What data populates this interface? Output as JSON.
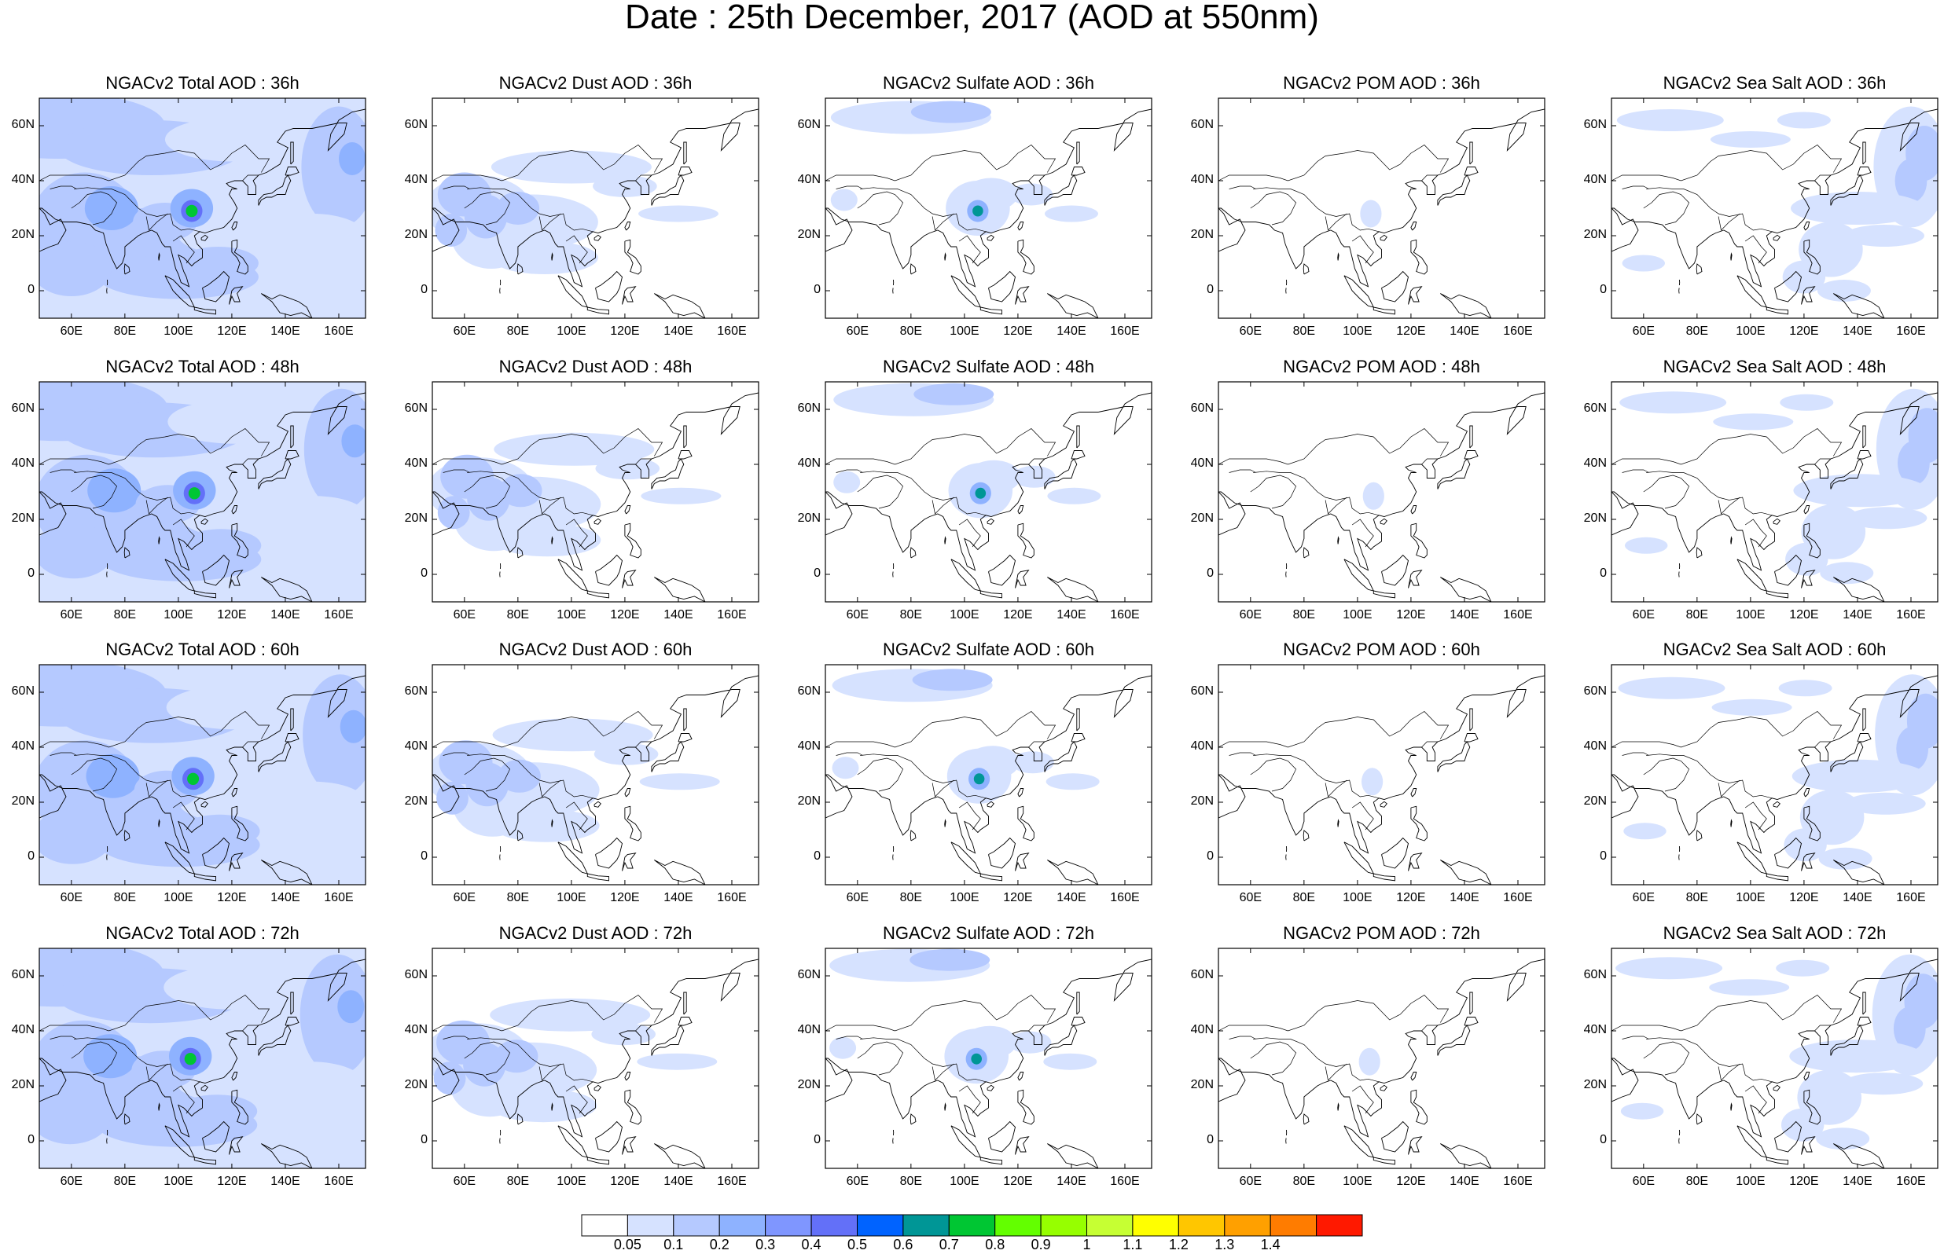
{
  "figure_title": "Date : 25th December, 2017 (AOD at 550nm)",
  "rows": [
    "36h",
    "48h",
    "60h",
    "72h"
  ],
  "columns": [
    "Total",
    "Dust",
    "Sulfate",
    "POM",
    "Sea Salt"
  ],
  "panel_titles": [
    [
      "NGACv2 Total AOD : 36h",
      "NGACv2 Dust AOD : 36h",
      "NGACv2 Sulfate AOD : 36h",
      "NGACv2 POM AOD : 36h",
      "NGACv2 Sea Salt AOD : 36h"
    ],
    [
      "NGACv2 Total AOD : 48h",
      "NGACv2 Dust AOD : 48h",
      "NGACv2 Sulfate AOD : 48h",
      "NGACv2 POM AOD : 48h",
      "NGACv2 Sea Salt AOD : 48h"
    ],
    [
      "NGACv2 Total AOD : 60h",
      "NGACv2 Dust AOD : 60h",
      "NGACv2 Sulfate AOD : 60h",
      "NGACv2 POM AOD : 60h",
      "NGACv2 Sea Salt AOD : 60h"
    ],
    [
      "NGACv2 Total AOD : 72h",
      "NGACv2 Dust AOD : 72h",
      "NGACv2 Sulfate AOD : 72h",
      "NGACv2 POM AOD : 72h",
      "NGACv2 Sea Salt  AOD : 72h"
    ]
  ],
  "map_extent": {
    "lon": [
      48,
      170
    ],
    "lat": [
      -10,
      70
    ]
  },
  "x_ticks": [
    "60E",
    "80E",
    "100E",
    "120E",
    "140E",
    "160E"
  ],
  "x_tick_values": [
    60,
    80,
    100,
    120,
    140,
    160
  ],
  "y_ticks": [
    "60N",
    "40N",
    "20N",
    "0"
  ],
  "y_tick_values": [
    60,
    40,
    20,
    0
  ],
  "colorbar": {
    "labels": [
      "0.05",
      "0.1",
      "0.2",
      "0.3",
      "0.4",
      "0.5",
      "0.6",
      "0.7",
      "0.8",
      "0.9",
      "1",
      "1.1",
      "1.2",
      "1.3",
      "1.4"
    ],
    "colors": [
      "#ffffff",
      "#d6e2ff",
      "#b5c9ff",
      "#8eb2ff",
      "#7f96ff",
      "#6370f8",
      "#0063ff",
      "#009696",
      "#00c633",
      "#63ff00",
      "#96ff00",
      "#c6ff33",
      "#ffff00",
      "#ffc600",
      "#ffa000",
      "#ff7c00",
      "#ff1900"
    ]
  },
  "colors": {
    "coast": "#000000",
    "frame": "#000000"
  }
}
